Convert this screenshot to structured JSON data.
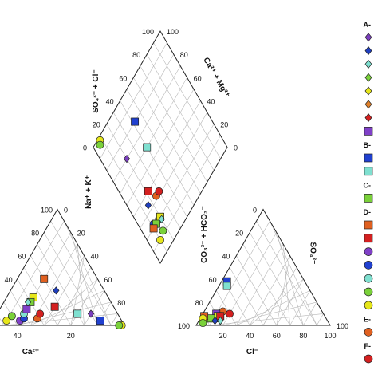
{
  "chart_data": {
    "type": "scatter",
    "subtype": "piper-diagram",
    "axis_labels": {
      "diamond_upper_left": "SO₄²⁻ + Cl⁻",
      "diamond_upper_right": "Ca²⁺ + Mg²⁺",
      "diamond_lower_left": "Na⁺ + K⁺",
      "diamond_lower_right": "CO₃²⁻ + HCO₃⁻",
      "cation_bottom": "Ca²⁺",
      "anion_bottom": "Cl⁻",
      "anion_right": "SO₄²⁻"
    },
    "ticks": {
      "diamond_upper_left": [
        "0",
        "20",
        "40",
        "60",
        "80",
        "100"
      ],
      "diamond_upper_right": [
        "100",
        "80",
        "60",
        "40",
        "20",
        "0"
      ],
      "cation_left": [
        "40",
        "60",
        "80",
        "100"
      ],
      "cation_right": [
        "0",
        "20",
        "40",
        "60",
        "80"
      ],
      "cation_bottom": [
        "40",
        "20"
      ],
      "anion_left": [
        "0",
        "20",
        "40",
        "60",
        "80",
        "100"
      ],
      "anion_bottom": [
        "20",
        "40",
        "60",
        "80",
        "100"
      ],
      "anion_right": [
        "100"
      ]
    },
    "grid": true,
    "legend_position": "right",
    "legend": [
      {
        "label": "A-",
        "marker": "",
        "color": ""
      },
      {
        "label": "",
        "marker": "diamond",
        "color": "#7b3fbf"
      },
      {
        "label": "",
        "marker": "diamond",
        "color": "#1f3fbf"
      },
      {
        "label": "",
        "marker": "diamond",
        "color": "#7fe0d0"
      },
      {
        "label": "",
        "marker": "diamond",
        "color": "#7ad13a"
      },
      {
        "label": "",
        "marker": "diamond",
        "color": "#e6e61a"
      },
      {
        "label": "",
        "marker": "diamond",
        "color": "#e0802a"
      },
      {
        "label": "",
        "marker": "diamond",
        "color": "#d42020"
      },
      {
        "label": "",
        "marker": "square",
        "color": "#8040c8"
      },
      {
        "label": "B-",
        "marker": "",
        "color": ""
      },
      {
        "label": "",
        "marker": "square",
        "color": "#2040d0"
      },
      {
        "label": "",
        "marker": "square",
        "color": "#7fe0d0"
      },
      {
        "label": "C-",
        "marker": "",
        "color": ""
      },
      {
        "label": "",
        "marker": "square",
        "color": "#7ad13a"
      },
      {
        "label": "D-",
        "marker": "",
        "color": ""
      },
      {
        "label": "",
        "marker": "square",
        "color": "#e06020"
      },
      {
        "label": "",
        "marker": "square",
        "color": "#d42020"
      },
      {
        "label": "",
        "marker": "circle",
        "color": "#8040c8"
      },
      {
        "label": "",
        "marker": "circle",
        "color": "#2040d0"
      },
      {
        "label": "",
        "marker": "circle",
        "color": "#7fe0d0"
      },
      {
        "label": "",
        "marker": "circle",
        "color": "#7ad13a"
      },
      {
        "label": "",
        "marker": "circle",
        "color": "#e6e61a"
      },
      {
        "label": "E-",
        "marker": "",
        "color": ""
      },
      {
        "label": "",
        "marker": "circle",
        "color": "#e06020"
      },
      {
        "label": "F-",
        "marker": "",
        "color": ""
      },
      {
        "label": "",
        "marker": "circle",
        "color": "#d42020"
      }
    ],
    "samples": [
      {
        "marker": "circle",
        "color": "#8040c8",
        "ca": 76,
        "mg": 4,
        "hco3": 86,
        "cl": 8
      },
      {
        "marker": "circle",
        "color": "#2040d0",
        "ca": 72,
        "mg": 6,
        "hco3": 88,
        "cl": 6
      },
      {
        "marker": "circle",
        "color": "#e6e61a",
        "ca": 86,
        "mg": 4,
        "hco3": 90,
        "cl": 4
      },
      {
        "marker": "circle",
        "color": "#7ad13a",
        "ca": 80,
        "mg": 8,
        "hco3": 84,
        "cl": 10
      },
      {
        "marker": "circle",
        "color": "#e06020",
        "ca": 62,
        "mg": 6,
        "hco3": 74,
        "cl": 14
      },
      {
        "marker": "circle",
        "color": "#d42020",
        "ca": 58,
        "mg": 10,
        "hco3": 70,
        "cl": 20
      },
      {
        "marker": "circle",
        "color": "#7fe0d0",
        "ca": 70,
        "mg": 10,
        "hco3": 82,
        "cl": 12
      },
      {
        "marker": "square",
        "color": "#8040c8",
        "ca": 66,
        "mg": 14,
        "hco3": 80,
        "cl": 10
      },
      {
        "marker": "square",
        "color": "#e6e61a",
        "ca": 56,
        "mg": 24,
        "hco3": 80,
        "cl": 12
      },
      {
        "marker": "square",
        "color": "#7ad13a",
        "ca": 60,
        "mg": 20,
        "hco3": 86,
        "cl": 8
      },
      {
        "marker": "square",
        "color": "#d42020",
        "ca": 44,
        "mg": 16,
        "hco3": 78,
        "cl": 14
      },
      {
        "marker": "square",
        "color": "#e06020",
        "ca": 40,
        "mg": 40,
        "hco3": 90,
        "cl": 2
      },
      {
        "marker": "square",
        "color": "#2040d0",
        "ca": 16,
        "mg": 4,
        "hco3": 58,
        "cl": 4
      },
      {
        "marker": "square",
        "color": "#7fe0d0",
        "ca": 30,
        "mg": 10,
        "hco3": 60,
        "cl": 6
      },
      {
        "marker": "diamond",
        "color": "#1f3fbf",
        "ca": 36,
        "mg": 30,
        "hco3": 84,
        "cl": 12
      },
      {
        "marker": "diamond",
        "color": "#7b3fbf",
        "ca": 20,
        "mg": 10,
        "hco3": 80,
        "cl": 16
      },
      {
        "marker": "diamond",
        "color": "#7fe0d0",
        "ca": 62,
        "mg": 20,
        "hco3": 80,
        "cl": 16
      },
      {
        "marker": "circle",
        "color": "#e6e61a",
        "ca": 2,
        "mg": 0,
        "hco3": 92,
        "cl": 2
      },
      {
        "marker": "circle",
        "color": "#7ad13a",
        "ca": 4,
        "mg": 0,
        "hco3": 94,
        "cl": 4
      }
    ]
  }
}
